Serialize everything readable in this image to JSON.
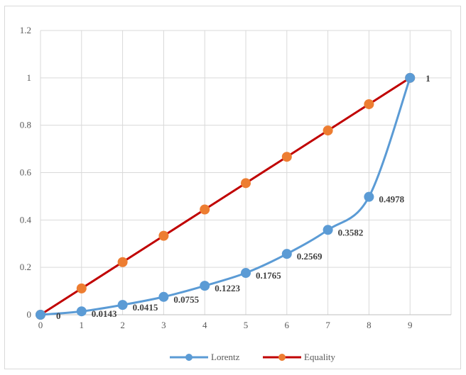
{
  "chart_data": {
    "type": "line",
    "title": "",
    "xlabel": "",
    "ylabel": "",
    "xlim": [
      0,
      10
    ],
    "ylim": [
      0,
      1.2
    ],
    "x_ticks": [
      "0",
      "1",
      "2",
      "3",
      "4",
      "5",
      "6",
      "7",
      "8",
      "9"
    ],
    "y_ticks": [
      "0",
      "0.2",
      "0.4",
      "0.6",
      "0.8",
      "1",
      "1.2"
    ],
    "grid": true,
    "legend_position": "bottom",
    "x": [
      0,
      1,
      2,
      3,
      4,
      5,
      6,
      7,
      8,
      9
    ],
    "series": [
      {
        "name": "Lorentz",
        "color": "#5b9bd5",
        "smooth": true,
        "values": [
          0,
          0.0143,
          0.0415,
          0.0755,
          0.1223,
          0.1765,
          0.2569,
          0.3582,
          0.4978,
          1
        ],
        "data_labels": [
          "0",
          "0.0143",
          "0.0415",
          "0.0755",
          "0.1223",
          "0.1765",
          "0.2569",
          "0.3582",
          "0.4978",
          "1"
        ]
      },
      {
        "name": "Equality",
        "color": "#c00000",
        "marker_color": "#ed7d31",
        "smooth": false,
        "values": [
          0,
          0.1111,
          0.2222,
          0.3333,
          0.4444,
          0.5556,
          0.6667,
          0.7778,
          0.8889,
          1
        ]
      }
    ]
  }
}
